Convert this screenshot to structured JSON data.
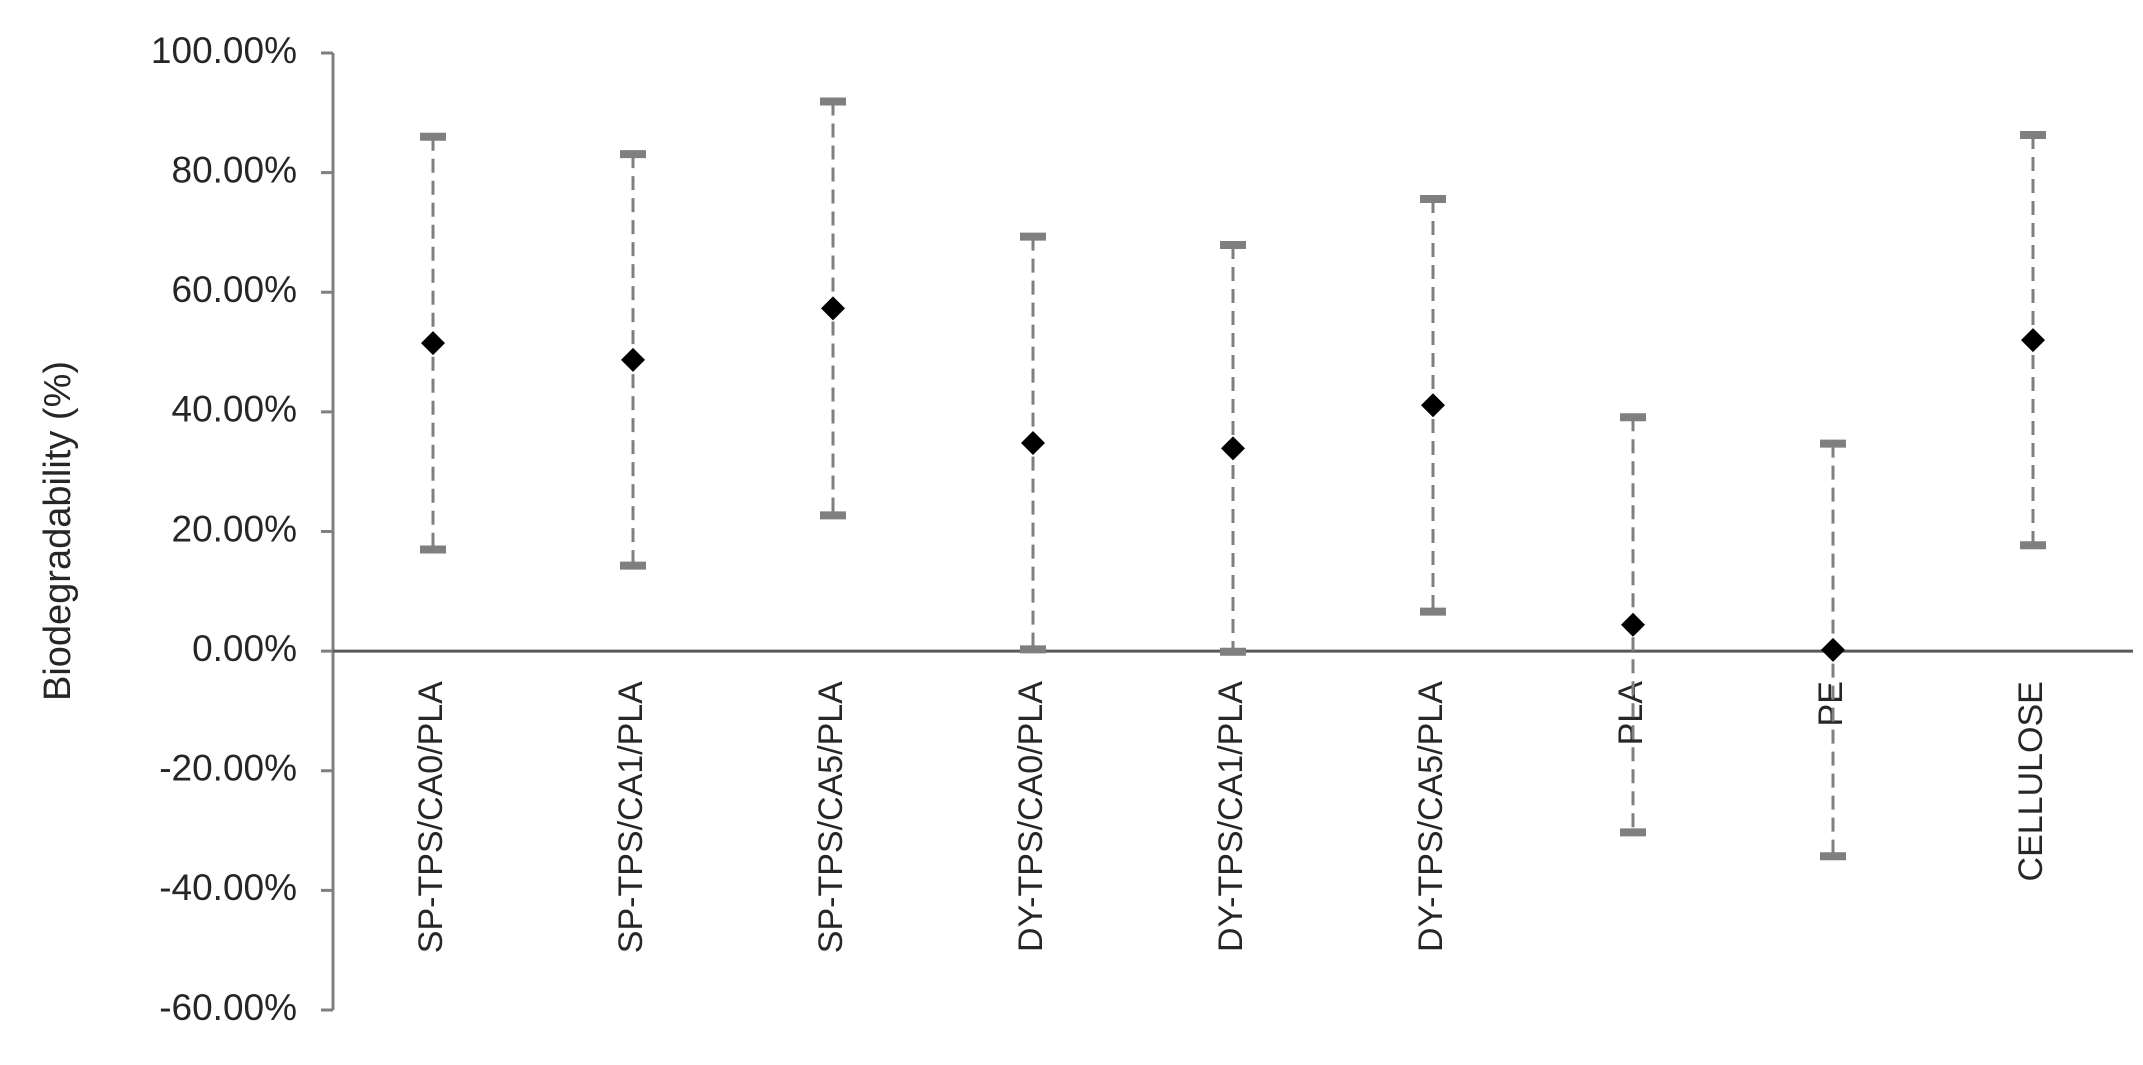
{
  "chart_data": {
    "type": "errorbar",
    "y_label": "Biodegradability (%)",
    "categories": [
      "SP-TPS/CA0/PLA",
      "SP-TPS/CA1/PLA",
      "SP-TPS/CA5/PLA",
      "DY-TPS/CA0/PLA",
      "DY-TPS/CA1/PLA",
      "DY-TPS/CA5/PLA",
      "PLA",
      "PE",
      "CELLULOSE"
    ],
    "values": [
      51.5,
      48.7,
      57.3,
      34.8,
      33.9,
      41.1,
      4.4,
      0.2,
      52.0
    ],
    "errors": [
      34.5,
      34.4,
      34.6,
      34.5,
      34.0,
      34.5,
      34.7,
      34.5,
      34.3
    ],
    "color": "#000000",
    "error_color": "#7f7f7f",
    "ylim": [
      -60,
      100
    ],
    "yticks": [
      {
        "value": -60,
        "label": "-60.00%"
      },
      {
        "value": -40,
        "label": "-40.00%"
      },
      {
        "value": -20,
        "label": "-20.00%"
      },
      {
        "value": 0,
        "label": "0.00%"
      },
      {
        "value": 20,
        "label": "20.00%"
      },
      {
        "value": 40,
        "label": "40.00%"
      },
      {
        "value": 60,
        "label": "60.00%"
      },
      {
        "value": 80,
        "label": "80.00%"
      },
      {
        "value": 100,
        "label": "100.00%"
      }
    ],
    "grid": false
  }
}
